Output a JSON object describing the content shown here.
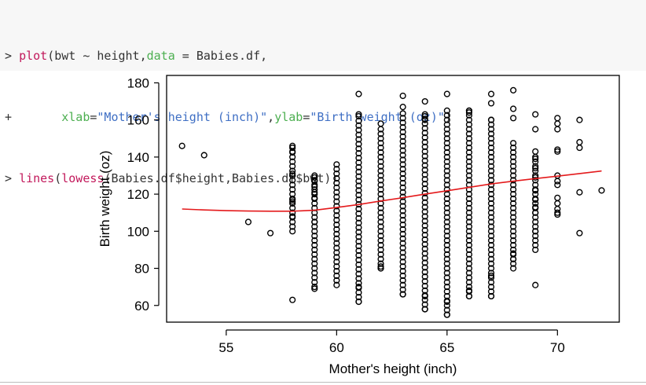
{
  "code_block": {
    "lines": [
      [
        {
          "t": "> ",
          "c": "op"
        },
        {
          "t": "plot",
          "c": "fn"
        },
        {
          "t": "(bwt ~ height,",
          "c": "op"
        },
        {
          "t": "data",
          "c": "arg"
        },
        {
          "t": " = Babies.df,",
          "c": "op"
        }
      ],
      [
        {
          "t": "+       ",
          "c": "op"
        },
        {
          "t": "xlab",
          "c": "arg"
        },
        {
          "t": "=",
          "c": "op"
        },
        {
          "t": "\"Mother's height (inch)\"",
          "c": "str"
        },
        {
          "t": ",",
          "c": "op"
        },
        {
          "t": "ylab",
          "c": "arg"
        },
        {
          "t": "=",
          "c": "op"
        },
        {
          "t": "\"Birth weight (oz)\"",
          "c": "str"
        },
        {
          "t": ")",
          "c": "op"
        }
      ],
      [
        {
          "t": "> ",
          "c": "op"
        },
        {
          "t": "lines",
          "c": "fn"
        },
        {
          "t": "(",
          "c": "op"
        },
        {
          "t": "lowess",
          "c": "fn"
        },
        {
          "t": "(Babies.df$height,Babies.df$bwt))",
          "c": "op"
        }
      ]
    ]
  },
  "chart_data": {
    "type": "scatter",
    "xlabel": "Mother's height (inch)",
    "ylabel": "Birth weight (oz)",
    "xlim": [
      52.3,
      72.8
    ],
    "ylim": [
      51,
      184
    ],
    "xticks": [
      55,
      60,
      65,
      70
    ],
    "yticks": [
      60,
      80,
      100,
      120,
      140,
      160,
      180
    ],
    "grid": false,
    "legend": "none",
    "point_color": "#000000",
    "line_color": "#e41a1c",
    "points": {
      "x": [
        53,
        54,
        56,
        57,
        58,
        58,
        58,
        58,
        58,
        58,
        58,
        58,
        59,
        59,
        59,
        59,
        59,
        59,
        59,
        69,
        69,
        69,
        69,
        69,
        69,
        69,
        69,
        69,
        69,
        69,
        69,
        70,
        70,
        70,
        70,
        70,
        70,
        70,
        70,
        70,
        70,
        70,
        70,
        70,
        71,
        71,
        71,
        71,
        71,
        72,
        61,
        61,
        61,
        61,
        62,
        62,
        62,
        63,
        63,
        63,
        64,
        64,
        64,
        64,
        64,
        65,
        65,
        65,
        66,
        66,
        66,
        66,
        67,
        67,
        67,
        67,
        67,
        68,
        68,
        68,
        68,
        68
      ],
      "y": [
        146,
        141,
        105,
        99,
        63,
        146,
        143,
        131,
        130,
        117,
        116,
        108,
        69,
        129,
        127,
        124,
        121,
        118,
        105,
        163,
        155,
        143,
        139,
        134,
        129,
        122,
        117,
        113,
        110,
        100,
        71,
        161,
        158,
        155,
        144,
        143,
        130,
        127,
        125,
        118,
        115,
        112,
        110,
        109,
        160,
        148,
        145,
        121,
        99,
        122,
        174,
        163,
        62,
        70,
        158,
        80,
        81,
        173,
        167,
        66,
        170,
        162,
        160,
        58,
        65,
        174,
        55,
        62,
        165,
        164,
        68,
        65,
        174,
        169,
        160,
        65,
        76,
        176,
        166,
        161,
        85,
        88
      ]
    },
    "lowess": {
      "x": [
        53,
        54,
        55,
        56,
        57,
        58,
        59,
        60,
        61,
        62,
        63,
        64,
        65,
        66,
        67,
        68,
        69,
        70,
        71,
        72
      ],
      "y": [
        112,
        111.5,
        111.1,
        110.9,
        110.8,
        110.8,
        111.3,
        112.8,
        114.4,
        116.3,
        118.1,
        120,
        121.8,
        123.7,
        125.5,
        127,
        128.4,
        129.7,
        131.1,
        132.5
      ]
    },
    "dense_columns": [
      {
        "x": 58,
        "y_range": [
          100,
          145
        ]
      },
      {
        "x": 59,
        "y_range": [
          70,
          130
        ]
      },
      {
        "x": 60,
        "y_range": [
          71,
          137
        ]
      },
      {
        "x": 61,
        "y_range": [
          62,
          163
        ]
      },
      {
        "x": 62,
        "y_range": [
          80,
          155
        ]
      },
      {
        "x": 63,
        "y_range": [
          66,
          165
        ]
      },
      {
        "x": 64,
        "y_range": [
          58,
          165
        ]
      },
      {
        "x": 65,
        "y_range": [
          55,
          165
        ]
      },
      {
        "x": 66,
        "y_range": [
          65,
          165
        ]
      },
      {
        "x": 67,
        "y_range": [
          65,
          160
        ]
      },
      {
        "x": 68,
        "y_range": [
          80,
          148
        ]
      },
      {
        "x": 69,
        "y_range": [
          90,
          140
        ]
      }
    ]
  }
}
